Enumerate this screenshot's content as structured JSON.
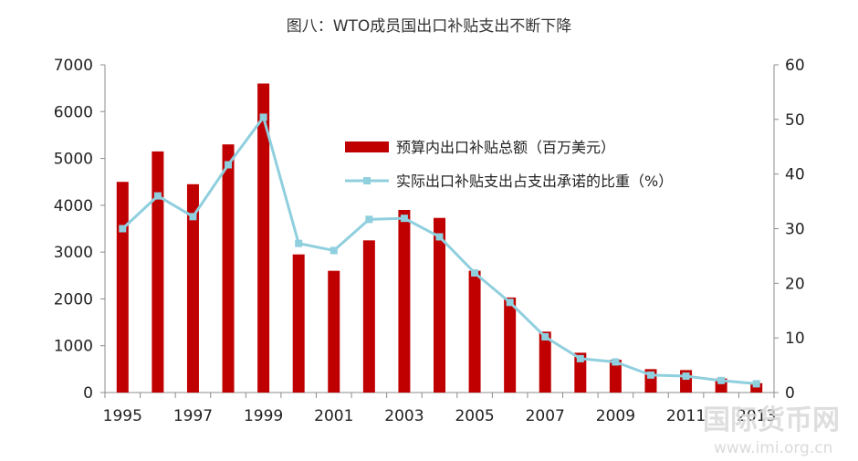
{
  "chart_data": {
    "type": "bar+line",
    "title": "图八：WTO成员国出口补贴支出不断下降",
    "x": [
      1995,
      1996,
      1997,
      1998,
      1999,
      2000,
      2001,
      2002,
      2003,
      2004,
      2005,
      2006,
      2007,
      2008,
      2009,
      2010,
      2011,
      2012,
      2013
    ],
    "x_tick_labels": [
      "1995",
      "1997",
      "1999",
      "2001",
      "2003",
      "2005",
      "2007",
      "2009",
      "2011",
      "2013"
    ],
    "y_left": {
      "ylim": [
        0,
        7000
      ],
      "ticks": [
        0,
        1000,
        2000,
        3000,
        4000,
        5000,
        6000,
        7000
      ]
    },
    "y_right": {
      "ylim": [
        0,
        60
      ],
      "ticks": [
        0,
        10,
        20,
        30,
        40,
        50,
        60
      ]
    },
    "series": [
      {
        "name": "预算内出口补贴总额（百万美元）",
        "type": "bar",
        "axis": "left",
        "color": "#c00000",
        "values": [
          4500,
          5150,
          4450,
          5300,
          6600,
          2950,
          2600,
          3250,
          3900,
          3730,
          2600,
          2030,
          1300,
          850,
          700,
          500,
          480,
          300,
          200
        ]
      },
      {
        "name": "实际出口补贴支出占支出承诺的比重（%）",
        "type": "line",
        "axis": "right",
        "color": "#8fcfde",
        "values": [
          30.0,
          36.0,
          32.2,
          41.7,
          50.4,
          27.3,
          26.0,
          31.7,
          31.9,
          28.5,
          21.9,
          16.5,
          10.2,
          6.2,
          5.6,
          3.2,
          3.0,
          2.2,
          1.6
        ]
      }
    ],
    "legend_position": "top-right",
    "grid": false
  },
  "watermark": {
    "text_cn": "国际货币网",
    "text_url": "www.imi.org.cn",
    "color": "#d9d9d9"
  }
}
